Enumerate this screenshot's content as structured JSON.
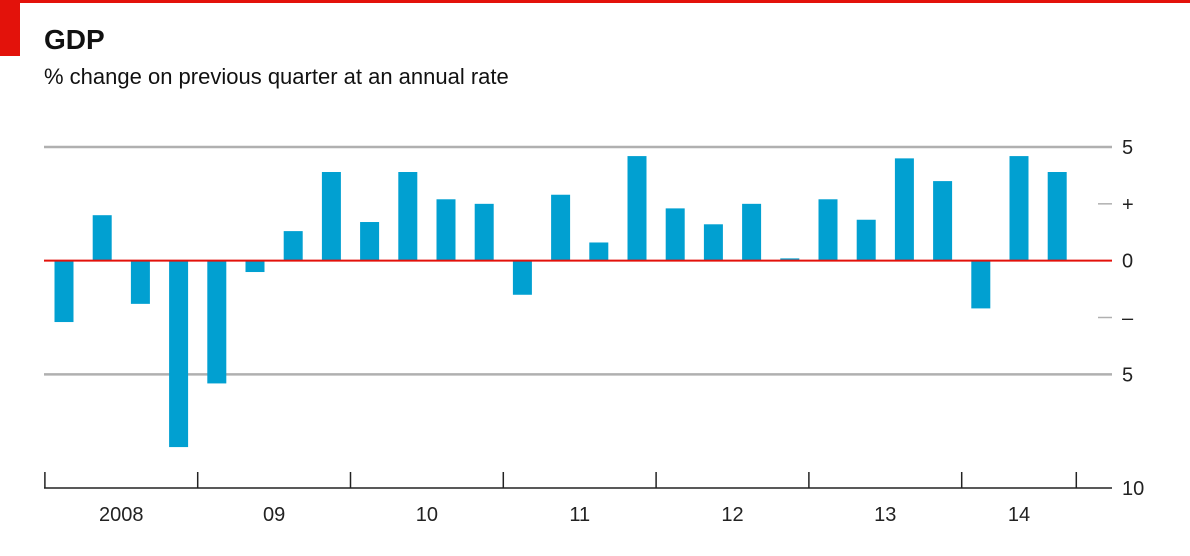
{
  "title": "GDP",
  "subtitle": "% change on previous quarter at an annual rate",
  "colors": {
    "accent_red": "#e3120b",
    "bar": "#01a0d1",
    "grid": "#b0b0b0",
    "zero": "#e3120b"
  },
  "chart_data": {
    "type": "bar",
    "title": "GDP",
    "subtitle": "% change on previous quarter at an annual rate",
    "ylim": [
      -10,
      5
    ],
    "y_axis_side": "right",
    "y_ticks": [
      {
        "value": 5,
        "label": "5"
      },
      {
        "value": 2.5,
        "label": "+"
      },
      {
        "value": 0,
        "label": "0"
      },
      {
        "value": -2.5,
        "label": "–"
      },
      {
        "value": -5,
        "label": "5"
      },
      {
        "value": -10,
        "label": "10"
      }
    ],
    "gridlines_at": [
      5,
      -5
    ],
    "x_year_labels": [
      "2008",
      "09",
      "10",
      "11",
      "12",
      "13",
      "14"
    ],
    "categories": [
      "2008 Q1",
      "2008 Q2",
      "2008 Q3",
      "2008 Q4",
      "2009 Q1",
      "2009 Q2",
      "2009 Q3",
      "2009 Q4",
      "2010 Q1",
      "2010 Q2",
      "2010 Q3",
      "2010 Q4",
      "2011 Q1",
      "2011 Q2",
      "2011 Q3",
      "2011 Q4",
      "2012 Q1",
      "2012 Q2",
      "2012 Q3",
      "2012 Q4",
      "2013 Q1",
      "2013 Q2",
      "2013 Q3",
      "2013 Q4",
      "2014 Q1",
      "2014 Q2",
      "2014 Q3"
    ],
    "values": [
      -2.7,
      2.0,
      -1.9,
      -8.2,
      -5.4,
      -0.5,
      1.3,
      3.9,
      1.7,
      3.9,
      2.7,
      2.5,
      -1.5,
      2.9,
      0.8,
      4.6,
      2.3,
      1.6,
      2.5,
      0.1,
      2.7,
      1.8,
      4.5,
      3.5,
      -2.1,
      4.6,
      3.9
    ]
  }
}
